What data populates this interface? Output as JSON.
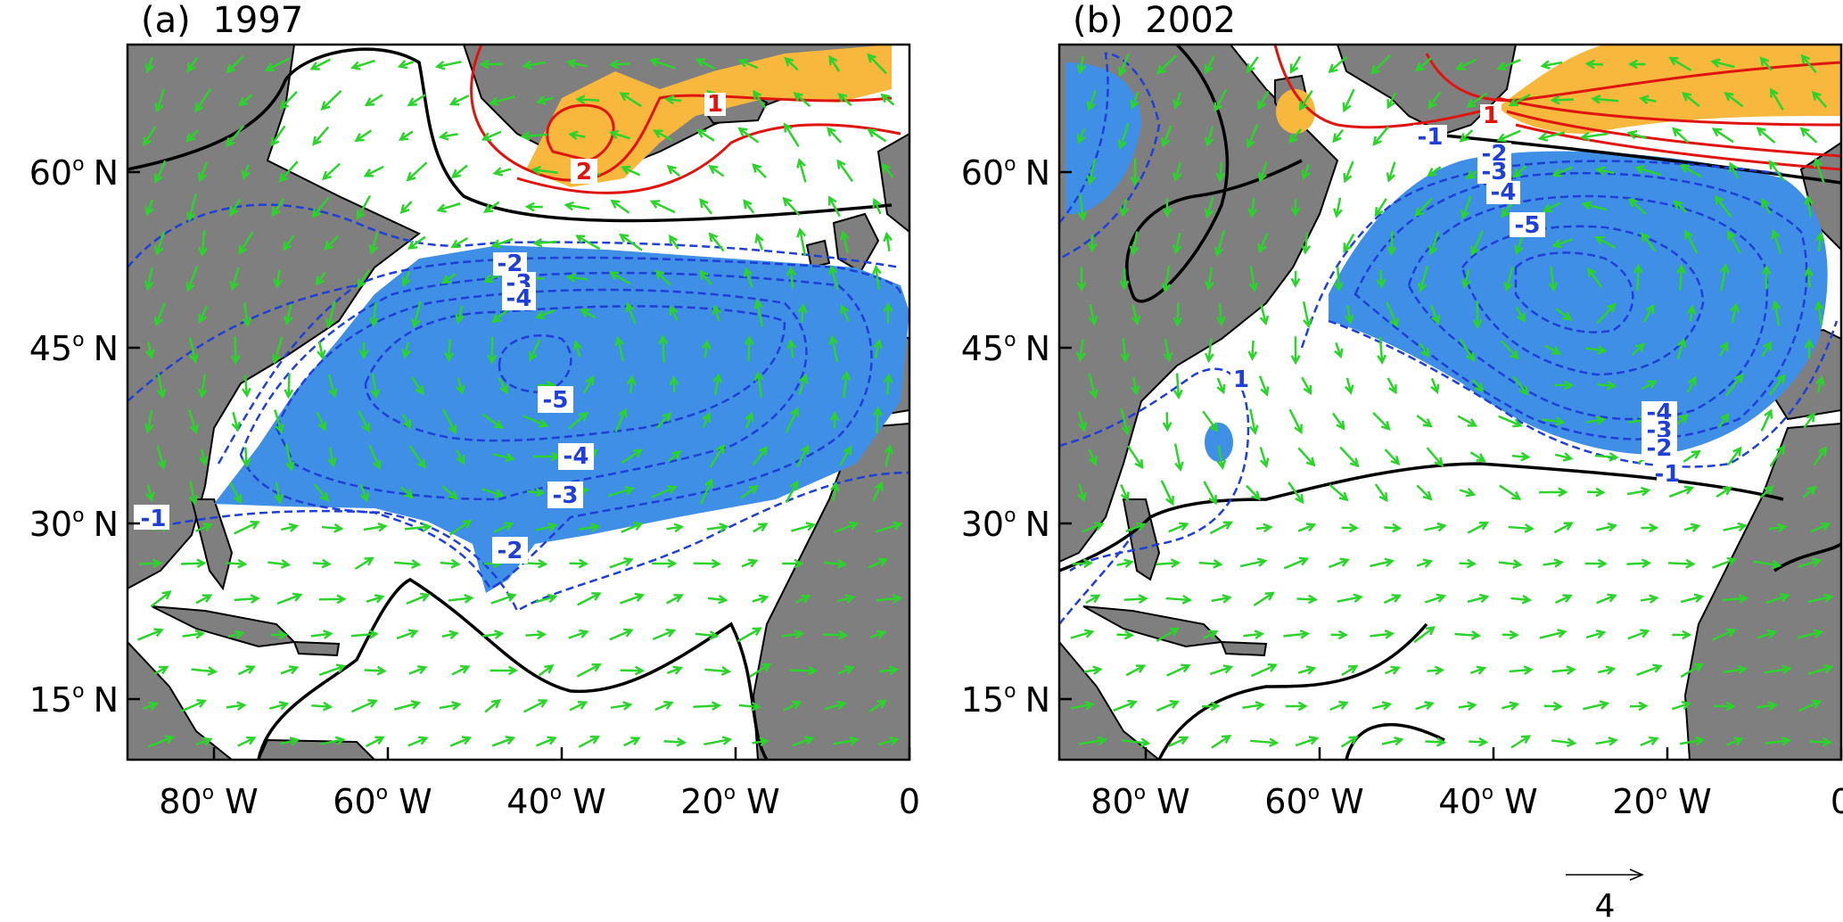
{
  "figure": {
    "colors": {
      "land": "#7f7f7f",
      "positive_fill": "#f7b83d",
      "negative_fill": "#3f8fe6",
      "positive_contour": "#e0140f",
      "negative_contour": "#1f3fd6",
      "zero_contour": "#000000",
      "vector": "#2bd32b"
    },
    "panels": [
      {
        "title_letter": "(a)",
        "title_year": "1997",
        "contour_labels": [
          "-2",
          "-3",
          "-4",
          "-5",
          "-4",
          "-3",
          "-2",
          "-1",
          "2",
          "1"
        ]
      },
      {
        "title_letter": "(b)",
        "title_year": "2002",
        "contour_labels": [
          "-1",
          "-2",
          "-3",
          "-4",
          "-5",
          "-4",
          "-3",
          "-2",
          "-1",
          "1",
          "1"
        ]
      }
    ],
    "x_axis": {
      "tick_values": [
        "80",
        "60",
        "40",
        "20",
        "0"
      ],
      "degree_mark": "o",
      "hemisphere": "W"
    },
    "y_axis": {
      "tick_values": [
        "60",
        "45",
        "30",
        "15"
      ],
      "degree_mark": "o",
      "hemisphere": "N"
    },
    "reference_vector": {
      "value": "4",
      "icon": "arrow-right-icon"
    }
  }
}
